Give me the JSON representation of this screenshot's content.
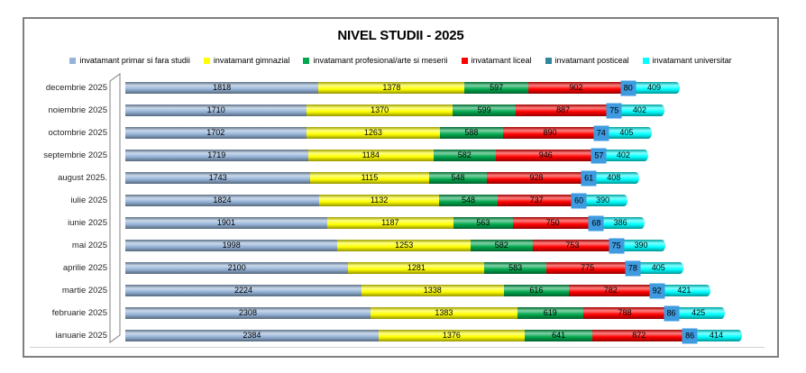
{
  "frame": {
    "border_color": "#808080",
    "background": "#FFFFFF",
    "axis_floor_color": "#D0D0D0"
  },
  "chart_data": {
    "type": "bar",
    "stacked": true,
    "orientation": "horizontal",
    "style": "3d-cylinder",
    "title": "NIVEL STUDII - 2025",
    "legend_position": "top",
    "value_labels": "inside-segments",
    "grid": false,
    "categories": [
      "decembrie 2025",
      "noiembrie 2025",
      "octombrie 2025",
      "septembrie 2025",
      "august 2025.",
      "iulie 2025",
      "iunie 2025",
      "mai 2025",
      "aprilie 2025",
      "martie 2025",
      "februarie 2025",
      "ianuarie 2025"
    ],
    "series": [
      {
        "name": "invatamant primar si fara studii",
        "color": "#95B3D7",
        "values": [
          1818,
          1710,
          1702,
          1719,
          1743,
          1824,
          1901,
          1998,
          2100,
          2224,
          2308,
          2384
        ]
      },
      {
        "name": "invatamant gimnazial",
        "color": "#FFFF00",
        "values": [
          1378,
          1370,
          1263,
          1184,
          1115,
          1132,
          1187,
          1253,
          1281,
          1338,
          1383,
          1376
        ]
      },
      {
        "name": "invatamant profesional/arte si meserii",
        "color": "#00A74D",
        "values": [
          597,
          599,
          588,
          582,
          548,
          548,
          563,
          582,
          583,
          616,
          619,
          641
        ]
      },
      {
        "name": "invatamant liceal",
        "color": "#FF0000",
        "values": [
          902,
          887,
          890,
          946,
          928,
          737,
          750,
          753,
          775,
          782,
          788,
          872
        ]
      },
      {
        "name": "invatamant posticeal",
        "color": "#31859C",
        "label_background": "#3E9BE0",
        "values": [
          80,
          75,
          74,
          57,
          61,
          60,
          68,
          75,
          78,
          92,
          86,
          86
        ]
      },
      {
        "name": "invatamant universitar",
        "color": "#00FFFF",
        "values": [
          409,
          402,
          405,
          402,
          408,
          390,
          386,
          390,
          405,
          421,
          425,
          414
        ]
      }
    ]
  }
}
